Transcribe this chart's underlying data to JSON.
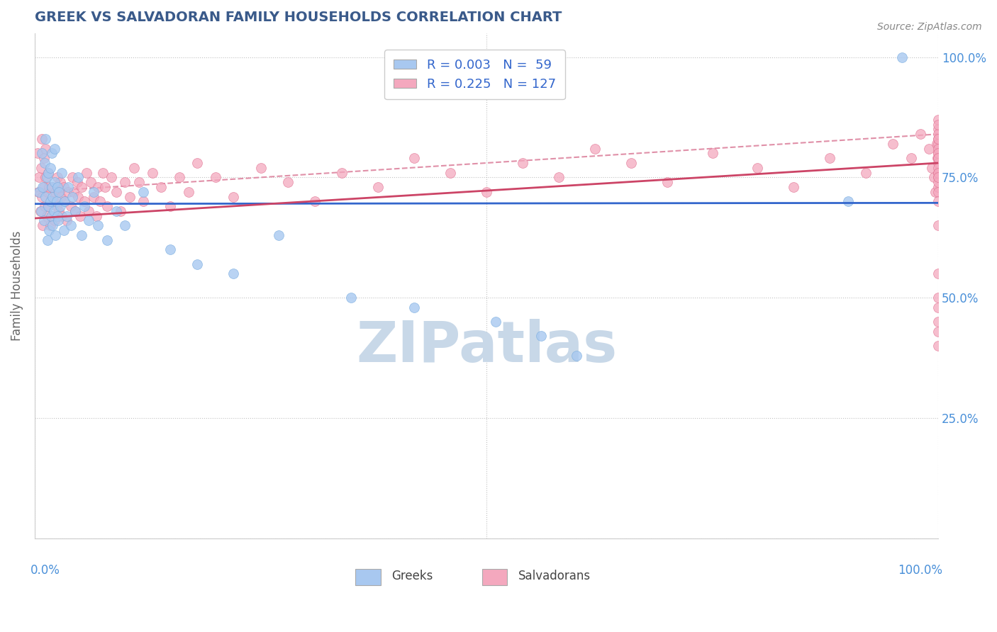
{
  "title": "GREEK VS SALVADORAN FAMILY HOUSEHOLDS CORRELATION CHART",
  "source": "Source: ZipAtlas.com",
  "ylabel": "Family Households",
  "greek_R": 0.003,
  "greek_N": 59,
  "salvadoran_R": 0.225,
  "salvadoran_N": 127,
  "greek_color": "#a8c8f0",
  "greek_edge_color": "#7aaee0",
  "salvadoran_color": "#f4a8be",
  "salvadoran_edge_color": "#e07090",
  "greek_line_color": "#3366cc",
  "salvadoran_line_color": "#cc4466",
  "dashed_line_color": "#e090a8",
  "watermark_color": "#c8d8e8",
  "title_color": "#3a5a8a",
  "axis_color": "#4a90d9",
  "legend_text_color": "#3366cc",
  "right_axis_color": "#4a90d9",
  "xlim": [
    0.0,
    1.0
  ],
  "ylim": [
    0.0,
    1.05
  ],
  "yticks": [
    0.0,
    0.25,
    0.5,
    0.75,
    1.0
  ],
  "yticklabels_right": [
    "",
    "25.0%",
    "50.0%",
    "75.0%",
    "100.0%"
  ],
  "greek_line_y": [
    0.695,
    0.697
  ],
  "salv_line_y": [
    0.665,
    0.78
  ],
  "dashed_line_y": [
    0.72,
    0.84
  ],
  "greek_scatter_x": [
    0.005,
    0.007,
    0.008,
    0.009,
    0.01,
    0.011,
    0.012,
    0.012,
    0.013,
    0.014,
    0.015,
    0.015,
    0.016,
    0.017,
    0.017,
    0.018,
    0.019,
    0.019,
    0.02,
    0.02,
    0.021,
    0.022,
    0.022,
    0.023,
    0.024,
    0.025,
    0.025,
    0.026,
    0.027,
    0.028,
    0.03,
    0.032,
    0.033,
    0.035,
    0.037,
    0.04,
    0.042,
    0.045,
    0.048,
    0.052,
    0.055,
    0.06,
    0.065,
    0.07,
    0.08,
    0.09,
    0.1,
    0.12,
    0.15,
    0.18,
    0.22,
    0.27,
    0.35,
    0.42,
    0.51,
    0.56,
    0.6,
    0.9,
    0.96
  ],
  "greek_scatter_y": [
    0.72,
    0.68,
    0.8,
    0.73,
    0.66,
    0.78,
    0.71,
    0.83,
    0.75,
    0.62,
    0.69,
    0.76,
    0.64,
    0.7,
    0.77,
    0.67,
    0.73,
    0.8,
    0.65,
    0.71,
    0.68,
    0.74,
    0.81,
    0.63,
    0.7,
    0.67,
    0.73,
    0.66,
    0.72,
    0.69,
    0.76,
    0.64,
    0.7,
    0.67,
    0.73,
    0.65,
    0.71,
    0.68,
    0.75,
    0.63,
    0.69,
    0.66,
    0.72,
    0.65,
    0.62,
    0.68,
    0.65,
    0.72,
    0.6,
    0.57,
    0.55,
    0.63,
    0.5,
    0.48,
    0.45,
    0.42,
    0.38,
    0.7,
    1.0
  ],
  "salv_scatter_x": [
    0.003,
    0.004,
    0.005,
    0.006,
    0.007,
    0.008,
    0.008,
    0.009,
    0.01,
    0.01,
    0.011,
    0.012,
    0.012,
    0.013,
    0.014,
    0.015,
    0.015,
    0.016,
    0.017,
    0.018,
    0.019,
    0.02,
    0.021,
    0.022,
    0.023,
    0.024,
    0.025,
    0.026,
    0.027,
    0.028,
    0.029,
    0.03,
    0.032,
    0.033,
    0.035,
    0.037,
    0.04,
    0.042,
    0.043,
    0.045,
    0.047,
    0.048,
    0.05,
    0.052,
    0.055,
    0.057,
    0.06,
    0.062,
    0.065,
    0.068,
    0.07,
    0.072,
    0.075,
    0.078,
    0.08,
    0.085,
    0.09,
    0.095,
    0.1,
    0.105,
    0.11,
    0.115,
    0.12,
    0.13,
    0.14,
    0.15,
    0.16,
    0.17,
    0.18,
    0.2,
    0.22,
    0.25,
    0.28,
    0.31,
    0.34,
    0.38,
    0.42,
    0.46,
    0.5,
    0.54,
    0.58,
    0.62,
    0.66,
    0.7,
    0.75,
    0.8,
    0.84,
    0.88,
    0.92,
    0.95,
    0.97,
    0.98,
    0.99,
    0.993,
    0.995,
    0.997,
    0.998,
    0.999,
    1.0,
    1.0,
    1.0,
    1.0,
    1.0,
    1.0,
    1.0,
    1.0,
    1.0,
    1.0,
    1.0,
    1.0,
    1.0,
    1.0,
    1.0,
    1.0,
    1.0,
    1.0,
    1.0,
    1.0,
    1.0,
    1.0,
    1.0,
    1.0,
    1.0,
    1.0,
    1.0,
    1.0,
    1.0
  ],
  "salv_scatter_y": [
    0.8,
    0.72,
    0.75,
    0.68,
    0.77,
    0.71,
    0.83,
    0.65,
    0.73,
    0.79,
    0.69,
    0.75,
    0.81,
    0.67,
    0.72,
    0.69,
    0.76,
    0.73,
    0.65,
    0.7,
    0.67,
    0.73,
    0.7,
    0.66,
    0.72,
    0.69,
    0.75,
    0.72,
    0.68,
    0.74,
    0.71,
    0.67,
    0.73,
    0.7,
    0.66,
    0.72,
    0.69,
    0.75,
    0.72,
    0.68,
    0.74,
    0.71,
    0.67,
    0.73,
    0.7,
    0.76,
    0.68,
    0.74,
    0.71,
    0.67,
    0.73,
    0.7,
    0.76,
    0.73,
    0.69,
    0.75,
    0.72,
    0.68,
    0.74,
    0.71,
    0.77,
    0.74,
    0.7,
    0.76,
    0.73,
    0.69,
    0.75,
    0.72,
    0.78,
    0.75,
    0.71,
    0.77,
    0.74,
    0.7,
    0.76,
    0.73,
    0.79,
    0.76,
    0.72,
    0.78,
    0.75,
    0.81,
    0.78,
    0.74,
    0.8,
    0.77,
    0.73,
    0.79,
    0.76,
    0.82,
    0.79,
    0.84,
    0.81,
    0.77,
    0.75,
    0.72,
    0.82,
    0.79,
    0.85,
    0.76,
    0.8,
    0.73,
    0.83,
    0.87,
    0.79,
    0.82,
    0.75,
    0.78,
    0.84,
    0.81,
    0.77,
    0.74,
    0.8,
    0.83,
    0.86,
    0.79,
    0.76,
    0.72,
    0.75,
    0.7,
    0.65,
    0.5,
    0.55,
    0.45,
    0.48,
    0.43,
    0.4
  ]
}
